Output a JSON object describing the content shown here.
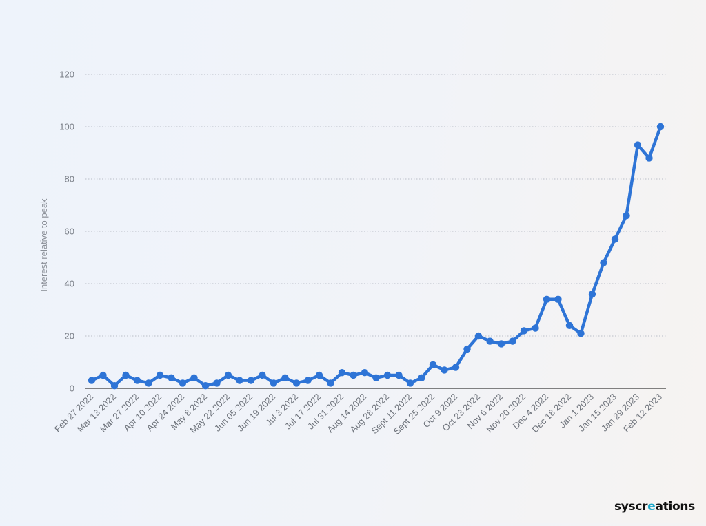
{
  "brand": {
    "prefix": "syscr",
    "accent": "e",
    "suffix": "ations"
  },
  "chart_data": {
    "type": "line",
    "title": "",
    "xlabel": "",
    "ylabel": "Interest relative to peak",
    "ylim": [
      0,
      120
    ],
    "yticks": [
      0,
      20,
      40,
      60,
      80,
      100,
      120
    ],
    "grid": true,
    "x": [
      "Feb 27 2022",
      "Mar 6 2022",
      "Mar 13 2022",
      "Mar 20 2022",
      "Mar 27 2022",
      "Apr 3 2022",
      "Apr 10 2022",
      "Apr 17 2022",
      "Apr 24 2022",
      "May 1 2022",
      "May 8 2022",
      "May 15 2022",
      "May 22 2022",
      "May 29 2022",
      "Jun 05 2022",
      "Jun 12 2022",
      "Jun 19 2022",
      "Jun 26 2022",
      "Jul 3 2022",
      "Jul 10 2022",
      "Jul 17 2022",
      "Jul 24 2022",
      "Jul 31 2022",
      "Aug 7 2022",
      "Aug 14 2022",
      "Aug 21 2022",
      "Aug 28 2022",
      "Sept 4 2022",
      "Sept 11 2022",
      "Sept 18 2022",
      "Sept 25 2022",
      "Oct 2 2022",
      "Oct 9 2022",
      "Oct 16 2022",
      "Oct 23 2022",
      "Oct 30 2022",
      "Nov 6 2022",
      "Nov 13 2022",
      "Nov 20 2022",
      "Nov 27 2022",
      "Dec 4 2022",
      "Dec 11 2022",
      "Dec 18 2022",
      "Dec 25 2022",
      "Jan 1 2023",
      "Jan 8 2023",
      "Jan 15 2023",
      "Jan 22 2023",
      "Jan 29 2023",
      "Feb 5 2023",
      "Feb 12 2023"
    ],
    "xtick_labels": [
      "Feb 27 2022",
      "Mar 13 2022",
      "Mar 27 2022",
      "Apr 10 2022",
      "Apr 24 2022",
      "May 8 2022",
      "May 22 2022",
      "Jun 05 2022",
      "Jun 19 2022",
      "Jul 3 2022",
      "Jul 17 2022",
      "Jul 31 2022",
      "Aug 14 2022",
      "Aug 28 2022",
      "Sept 11 2022",
      "Sept 25 2022",
      "Oct 9 2022",
      "Oct 23 2022",
      "Nov 6 2022",
      "Nov 20 2022",
      "Dec 4 2022",
      "Dec 18 2022",
      "Jan 1 2023",
      "Jan 15 2023",
      "Jan 29 2023",
      "Feb 12 2023"
    ],
    "series": [
      {
        "name": "",
        "color": "#2e74d6",
        "values": [
          3,
          5,
          1,
          5,
          3,
          2,
          5,
          4,
          2,
          4,
          1,
          2,
          5,
          3,
          3,
          5,
          2,
          4,
          2,
          3,
          5,
          2,
          6,
          5,
          6,
          4,
          5,
          5,
          2,
          4,
          9,
          7,
          8,
          15,
          20,
          18,
          17,
          18,
          22,
          23,
          34,
          34,
          24,
          21,
          36,
          48,
          57,
          66,
          93,
          88,
          100
        ]
      }
    ]
  }
}
